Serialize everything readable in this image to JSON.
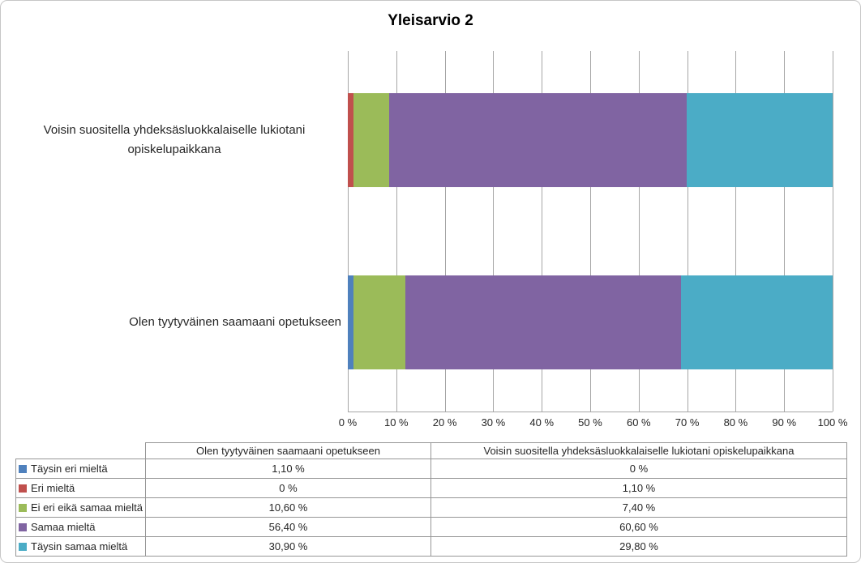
{
  "title": "Yleisarvio 2",
  "chart_data": {
    "type": "bar",
    "orientation": "horizontal",
    "stacked": "100%",
    "title": "Yleisarvio 2",
    "categories": [
      "Voisin suositella yhdeksäsluokkalaiselle lukiotani opiskelupaikkana",
      "Olen tyytyväinen saamaani opetukseen"
    ],
    "series": [
      {
        "name": "Täysin eri mieltä",
        "color": "#4F81BD",
        "values": [
          0.0,
          1.1
        ]
      },
      {
        "name": "Eri mieltä",
        "color": "#C0504D",
        "values": [
          1.1,
          0.0
        ]
      },
      {
        "name": "Ei eri eikä samaa mieltä",
        "color": "#9BBB59",
        "values": [
          7.4,
          10.6
        ]
      },
      {
        "name": "Samaa mieltä",
        "color": "#8064A2",
        "values": [
          60.6,
          56.4
        ]
      },
      {
        "name": "Täysin samaa mieltä",
        "color": "#4BACC6",
        "values": [
          29.8,
          30.9
        ]
      }
    ],
    "xlim": [
      0,
      100
    ],
    "x_tick_labels": [
      "0 %",
      "10 %",
      "20 %",
      "30 %",
      "40 %",
      "50 %",
      "60 %",
      "70 %",
      "80 %",
      "90 %",
      "100 %"
    ],
    "grid": "vertical",
    "legend_position": "table-below",
    "gridline_color": "#A6A6A6"
  },
  "table": {
    "column_headers": [
      "Olen tyytyväinen saamaani opetukseen",
      "Voisin suositella yhdeksäsluokkalaiselle lukiotani opiskelupaikkana"
    ],
    "rows": [
      {
        "label": "Täysin eri mieltä",
        "color": "#4F81BD",
        "values": [
          "1,10 %",
          "0 %"
        ]
      },
      {
        "label": "Eri mieltä",
        "color": "#C0504D",
        "values": [
          "0 %",
          "1,10 %"
        ]
      },
      {
        "label": "Ei eri eikä samaa mieltä",
        "color": "#9BBB59",
        "values": [
          "10,60 %",
          "7,40 %"
        ]
      },
      {
        "label": "Samaa mieltä",
        "color": "#8064A2",
        "values": [
          "56,40 %",
          "60,60 %"
        ]
      },
      {
        "label": "Täysin samaa mieltä",
        "color": "#4BACC6",
        "values": [
          "30,90 %",
          "29,80 %"
        ]
      }
    ]
  }
}
